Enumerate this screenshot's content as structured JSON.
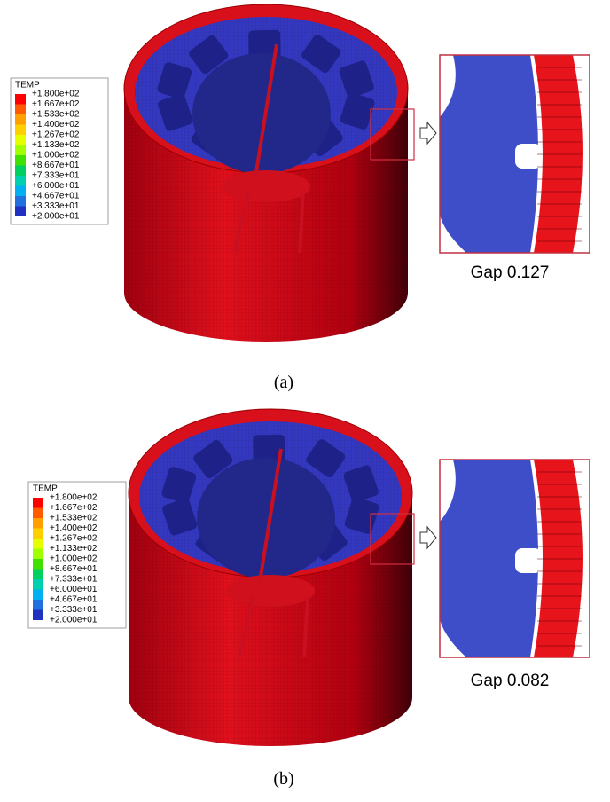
{
  "legend": {
    "title": "TEMP",
    "labels": [
      "+1.800e+02",
      "+1.667e+02",
      "+1.533e+02",
      "+1.400e+02",
      "+1.267e+02",
      "+1.133e+02",
      "+1.000e+02",
      "+8.667e+01",
      "+7.333e+01",
      "+6.000e+01",
      "+4.667e+01",
      "+3.333e+01",
      "+2.000e+01"
    ],
    "colors": [
      "#ff0000",
      "#ff5a00",
      "#ffa000",
      "#ffd000",
      "#e6ff00",
      "#a0ff00",
      "#40e000",
      "#00d060",
      "#00d0b0",
      "#00b0f0",
      "#2070e0",
      "#2030c0"
    ]
  },
  "panels": [
    {
      "label": "(a)",
      "gap_label": "Gap 0.127"
    },
    {
      "label": "(b)",
      "gap_label": "Gap 0.082"
    }
  ]
}
